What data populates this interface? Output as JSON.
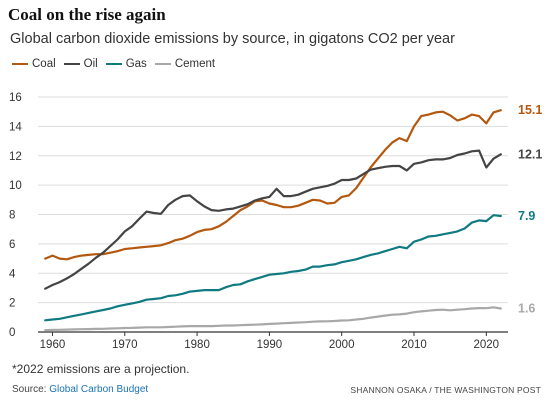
{
  "title": "Coal on the rise again",
  "subtitle": "Global carbon dioxide emissions by source, in gigatons CO2 per year",
  "note": "*2022 emissions are a projection.",
  "source_prefix": "Source: ",
  "source_link": "Global Carbon Budget",
  "credit": "SHANNON OSAKA / THE WASHINGTON POST",
  "colors": {
    "coal": "#b5580f",
    "oil": "#444444",
    "gas": "#0f7a80",
    "cement": "#a8a8a8",
    "grid": "#dddddd",
    "axis": "#333333"
  },
  "chart_data": {
    "type": "line",
    "xlim": [
      1958,
      2023
    ],
    "ylim": [
      0,
      16
    ],
    "grid": true,
    "legend_placement": "top-left",
    "x_ticks": [
      1960,
      1970,
      1980,
      1990,
      2000,
      2010,
      2020
    ],
    "x_tick_labels": [
      "1960",
      "1970",
      "1980",
      "1990",
      "2000",
      "2010",
      "2020"
    ],
    "y_ticks": [
      0,
      2,
      4,
      6,
      8,
      10,
      12,
      14,
      16
    ],
    "y_tick_labels": [
      "0",
      "2",
      "4",
      "6",
      "8",
      "10",
      "12",
      "14",
      "16"
    ],
    "x": [
      1959,
      1960,
      1961,
      1962,
      1963,
      1964,
      1965,
      1966,
      1967,
      1968,
      1969,
      1970,
      1971,
      1972,
      1973,
      1974,
      1975,
      1976,
      1977,
      1978,
      1979,
      1980,
      1981,
      1982,
      1983,
      1984,
      1985,
      1986,
      1987,
      1988,
      1989,
      1990,
      1991,
      1992,
      1993,
      1994,
      1995,
      1996,
      1997,
      1998,
      1999,
      2000,
      2001,
      2002,
      2003,
      2004,
      2005,
      2006,
      2007,
      2008,
      2009,
      2010,
      2011,
      2012,
      2013,
      2014,
      2015,
      2016,
      2017,
      2018,
      2019,
      2020,
      2021,
      2022
    ],
    "series": [
      {
        "name": "Coal",
        "color_key": "coal",
        "end_label": "15.1",
        "values": [
          5.0,
          5.2,
          5.0,
          4.95,
          5.1,
          5.2,
          5.25,
          5.3,
          5.3,
          5.4,
          5.5,
          5.65,
          5.7,
          5.75,
          5.8,
          5.85,
          5.9,
          6.05,
          6.25,
          6.35,
          6.55,
          6.8,
          6.95,
          7.0,
          7.2,
          7.5,
          7.9,
          8.3,
          8.55,
          8.9,
          8.95,
          8.75,
          8.65,
          8.5,
          8.5,
          8.6,
          8.8,
          9.0,
          8.95,
          8.75,
          8.8,
          9.2,
          9.3,
          9.8,
          10.5,
          11.2,
          11.8,
          12.4,
          12.9,
          13.2,
          13.0,
          14.0,
          14.7,
          14.8,
          14.95,
          15.0,
          14.75,
          14.4,
          14.55,
          14.8,
          14.7,
          14.2,
          14.95,
          15.1
        ]
      },
      {
        "name": "Oil",
        "color_key": "oil",
        "end_label": "12.1",
        "values": [
          2.95,
          3.2,
          3.4,
          3.65,
          3.95,
          4.3,
          4.65,
          5.05,
          5.4,
          5.85,
          6.3,
          6.85,
          7.2,
          7.7,
          8.2,
          8.1,
          8.05,
          8.65,
          9.0,
          9.25,
          9.3,
          8.9,
          8.55,
          8.3,
          8.25,
          8.35,
          8.4,
          8.55,
          8.7,
          8.95,
          9.1,
          9.2,
          9.75,
          9.25,
          9.25,
          9.35,
          9.55,
          9.75,
          9.85,
          9.95,
          10.1,
          10.35,
          10.35,
          10.45,
          10.75,
          11.05,
          11.15,
          11.25,
          11.3,
          11.3,
          11.0,
          11.45,
          11.55,
          11.7,
          11.75,
          11.75,
          11.85,
          12.05,
          12.15,
          12.3,
          12.35,
          11.2,
          11.8,
          12.1
        ]
      },
      {
        "name": "Gas",
        "color_key": "gas",
        "end_label": "7.9",
        "values": [
          0.8,
          0.85,
          0.9,
          1.0,
          1.1,
          1.2,
          1.3,
          1.4,
          1.5,
          1.6,
          1.75,
          1.85,
          1.95,
          2.05,
          2.2,
          2.25,
          2.3,
          2.45,
          2.5,
          2.6,
          2.75,
          2.8,
          2.85,
          2.85,
          2.85,
          3.05,
          3.2,
          3.25,
          3.45,
          3.6,
          3.75,
          3.9,
          3.95,
          4.0,
          4.1,
          4.15,
          4.25,
          4.45,
          4.45,
          4.55,
          4.6,
          4.75,
          4.85,
          4.95,
          5.1,
          5.25,
          5.35,
          5.5,
          5.65,
          5.8,
          5.7,
          6.15,
          6.3,
          6.5,
          6.55,
          6.65,
          6.75,
          6.85,
          7.05,
          7.45,
          7.6,
          7.55,
          7.95,
          7.9
        ]
      },
      {
        "name": "Cement",
        "color_key": "cement",
        "end_label": "1.6",
        "values": [
          0.12,
          0.14,
          0.15,
          0.16,
          0.18,
          0.19,
          0.2,
          0.21,
          0.22,
          0.24,
          0.25,
          0.27,
          0.28,
          0.3,
          0.32,
          0.32,
          0.32,
          0.34,
          0.36,
          0.38,
          0.4,
          0.4,
          0.4,
          0.4,
          0.42,
          0.44,
          0.44,
          0.46,
          0.48,
          0.5,
          0.52,
          0.55,
          0.57,
          0.6,
          0.62,
          0.65,
          0.67,
          0.7,
          0.72,
          0.73,
          0.75,
          0.78,
          0.8,
          0.85,
          0.9,
          0.98,
          1.05,
          1.12,
          1.18,
          1.2,
          1.25,
          1.35,
          1.4,
          1.45,
          1.5,
          1.52,
          1.48,
          1.52,
          1.55,
          1.6,
          1.63,
          1.62,
          1.68,
          1.6
        ]
      }
    ]
  }
}
